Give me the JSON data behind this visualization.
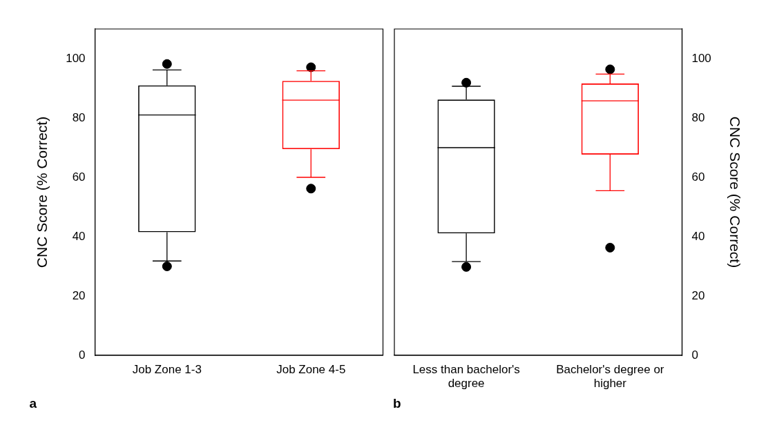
{
  "chart_data": [
    {
      "type": "box",
      "categories": [
        "Job Zone 1-3",
        "Job Zone 4-5"
      ],
      "colors": [
        "#000000",
        "#ff0000"
      ],
      "ylabel": "CNC Score (% Correct)",
      "ylim": [
        0,
        110
      ],
      "yticks": [
        0,
        20,
        40,
        60,
        80,
        100
      ],
      "grid": false,
      "legend": false,
      "marker": "circle",
      "annotations": [
        "a"
      ],
      "boxes": [
        {
          "low": 31.8,
          "q1": 41.5,
          "median": 81,
          "q3": 91,
          "high": 96.2,
          "outliers": [
            98.2,
            30
          ]
        },
        {
          "low": 60,
          "q1": 69.5,
          "median": 86,
          "q3": 92.5,
          "high": 95.9,
          "outliers": [
            97.1,
            56.2
          ]
        }
      ]
    },
    {
      "type": "box",
      "categories": [
        "Less than bachelor's degree",
        "Bachelor's degree or higher"
      ],
      "y2label": "CNC Score (% Correct)",
      "y2lim": [
        0,
        110
      ],
      "y2ticks": [
        0,
        20,
        40,
        60,
        80,
        100
      ],
      "grid": false,
      "legend": false,
      "marker": "circle",
      "annotations": [
        "b"
      ],
      "series": [
        {
          "axis": "y2",
          "colors": [
            "#000000",
            "#ff0000"
          ],
          "boxes": [
            {
              "low": 31.6,
              "q1": 41.1,
              "median": 70,
              "q3": 86.2,
              "high": 90.7,
              "outliers": [
                91.9,
                29.8
              ]
            },
            {
              "low": 55.5,
              "q1": 67.7,
              "median": 85.8,
              "q3": 91.6,
              "high": 94.8,
              "outliers": [
                96.4,
                36.3
              ]
            }
          ]
        }
      ]
    }
  ]
}
